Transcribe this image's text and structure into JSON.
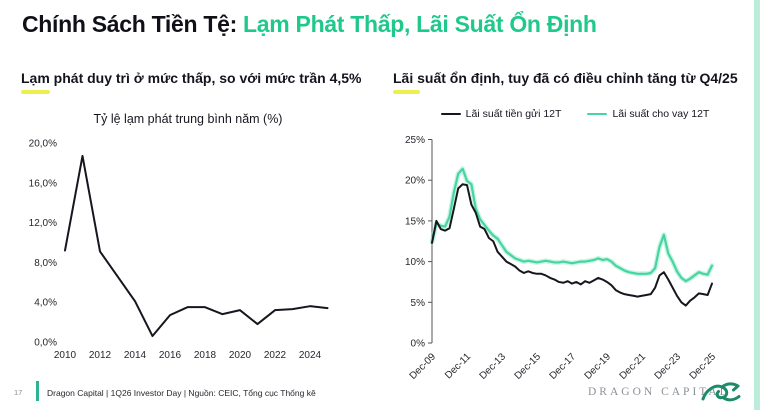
{
  "title": {
    "prefix": "Chính Sách Tiền Tệ: ",
    "highlight": "Lạm Phát Thấp, Lãi Suất Ổn Định"
  },
  "left_panel": {
    "heading": "Lạm phát duy trì ở mức thấp, so với mức trần 4,5%"
  },
  "right_panel": {
    "heading": "Lãi suất ổn định, tuy đã có điều chỉnh tăng từ Q4/25",
    "legend": [
      {
        "label": "Lãi suất tiền gửi 12T",
        "color": "#16161f"
      },
      {
        "label": "Lãi suất cho vay 12T",
        "color": "#45d5a0"
      }
    ]
  },
  "footer": {
    "page_number": "17",
    "source_text": "Dragon Capital | 1Q26 Investor Day | Nguồn: CEIC, Tổng cục Thống kê",
    "brand_name": "DRAGON CAPITAL"
  },
  "colors": {
    "accent_green": "#1fc98c",
    "line_dark": "#16161f",
    "line_green": "#45d5a0",
    "line_green_glow": "rgba(140,230,195,0.45)",
    "underline_yellow": "#edef4e",
    "edge_strip": "#bceddb",
    "footer_bar": "#2bb392",
    "brand_gray": "#8b9097",
    "logo_green": "#1d8a68",
    "axis_gray": "#555555"
  },
  "chart_data": [
    {
      "type": "line",
      "title": "Tỷ lệ lạm phát trung bình năm (%)",
      "xlabel": "",
      "ylabel": "",
      "grid": false,
      "ylim": [
        0,
        20
      ],
      "x": [
        2010,
        2011,
        2012,
        2013,
        2014,
        2015,
        2016,
        2017,
        2018,
        2019,
        2020,
        2021,
        2022,
        2023,
        2024,
        2025
      ],
      "values": [
        9.2,
        18.7,
        9.1,
        6.6,
        4.1,
        0.6,
        2.7,
        3.5,
        3.5,
        2.8,
        3.2,
        1.8,
        3.2,
        3.3,
        3.6,
        3.4
      ],
      "ytick_values": [
        0,
        4,
        8,
        12,
        16,
        20
      ],
      "ytick_labels": [
        "0,0%",
        "4,0%",
        "8,0%",
        "12,0%",
        "16,0%",
        "20,0%"
      ],
      "xtick_years": [
        2010,
        2012,
        2014,
        2016,
        2018,
        2020,
        2022,
        2024
      ],
      "xtick_labels": [
        "2010",
        "2012",
        "2014",
        "2016",
        "2018",
        "2020",
        "2022",
        "2024"
      ]
    },
    {
      "type": "line",
      "title": "",
      "grid": false,
      "ylim": [
        0,
        25
      ],
      "x_unit": "quarter",
      "x_start": "Dec-09",
      "x_end": "Dec-25",
      "legend_position": "top",
      "ytick_values": [
        0,
        5,
        10,
        15,
        20,
        25
      ],
      "ytick_labels": [
        "0%",
        "5%",
        "10%",
        "15%",
        "20%",
        "25%"
      ],
      "xtick_indices": [
        0,
        8,
        16,
        24,
        32,
        40,
        48,
        56,
        64
      ],
      "xtick_labels": [
        "Dec-09",
        "Dec-11",
        "Dec-13",
        "Dec-15",
        "Dec-17",
        "Dec-19",
        "Dec-21",
        "Dec-23",
        "Dec-25"
      ],
      "series": [
        {
          "name": "Lãi suất tiền gửi 12T",
          "color": "#16161f",
          "values": [
            12.3,
            15.0,
            14.0,
            13.8,
            14.1,
            16.5,
            19.0,
            19.5,
            19.4,
            17.0,
            16.0,
            14.3,
            14.0,
            12.9,
            12.5,
            11.2,
            10.6,
            10.0,
            9.7,
            9.4,
            8.9,
            8.6,
            8.8,
            8.6,
            8.5,
            8.5,
            8.3,
            8.0,
            7.8,
            7.5,
            7.4,
            7.6,
            7.3,
            7.5,
            7.2,
            7.6,
            7.4,
            7.7,
            8.0,
            7.8,
            7.5,
            7.1,
            6.5,
            6.2,
            6.0,
            5.9,
            5.8,
            5.7,
            5.8,
            5.9,
            6.0,
            6.8,
            8.3,
            8.7,
            7.8,
            6.8,
            5.8,
            5.0,
            4.6,
            5.2,
            5.6,
            6.1,
            6.0,
            5.9,
            7.3
          ]
        },
        {
          "name": "Lãi suất cho vay 12T",
          "color": "#45d5a0",
          "values": [
            12.4,
            14.7,
            14.4,
            14.3,
            15.5,
            18.5,
            20.8,
            21.4,
            19.9,
            19.5,
            16.5,
            15.2,
            14.5,
            13.8,
            13.2,
            12.8,
            12.0,
            11.2,
            10.8,
            10.4,
            10.2,
            10.0,
            10.1,
            10.0,
            9.9,
            10.0,
            10.1,
            10.0,
            9.9,
            9.9,
            10.0,
            9.9,
            9.8,
            9.9,
            10.0,
            10.0,
            10.1,
            10.2,
            10.4,
            10.2,
            10.3,
            10.0,
            9.5,
            9.2,
            8.9,
            8.7,
            8.6,
            8.5,
            8.5,
            8.5,
            8.6,
            9.2,
            11.8,
            13.3,
            11.0,
            10.0,
            8.8,
            8.0,
            7.6,
            7.9,
            8.3,
            8.7,
            8.5,
            8.4,
            9.5
          ]
        }
      ]
    }
  ]
}
